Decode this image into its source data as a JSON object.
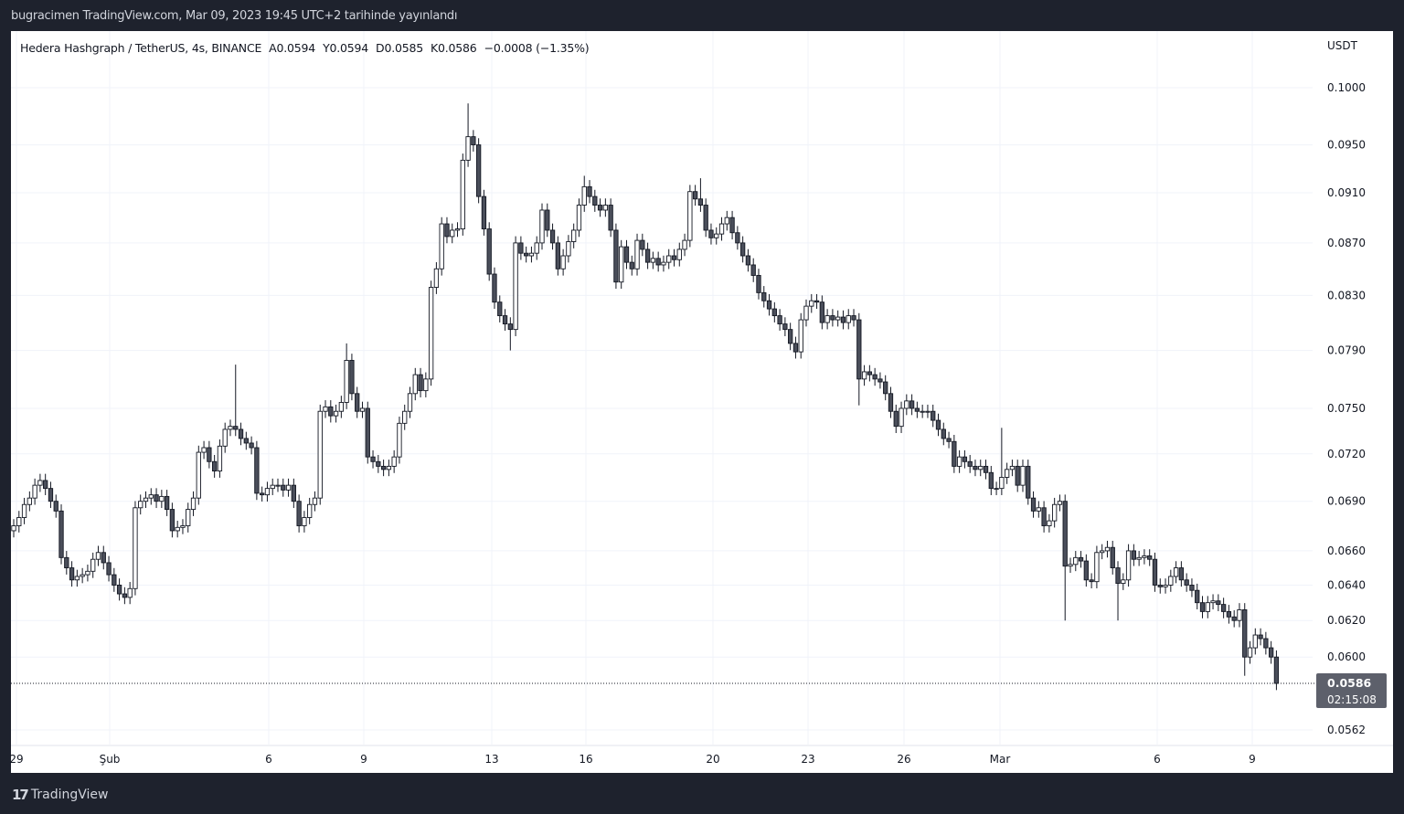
{
  "publication": "bugracimen TradingView.com, Mar 09, 2023 19:45 UTC+2 tarihinde yayınlandı",
  "legend": {
    "symbol": "Hedera Hashgraph / TetherUS, 4s, BINANCE",
    "open": "A0.0594",
    "high": "Y0.0594",
    "low": "D0.0585",
    "close": "K0.0586",
    "change": "−0.0008 (−1.35%)"
  },
  "footer": {
    "brand": "TradingView"
  },
  "colors": {
    "up_body": "#ffffff",
    "down_body": "#4a4e5a",
    "border": "#131722",
    "price_label_bg": "#5d606b",
    "grid": "#f0f3fa"
  },
  "chart_data": {
    "type": "candlestick",
    "title": "",
    "y_scale": "log",
    "currency_label": "USDT",
    "y_ticks": [
      "0.1000",
      "0.0950",
      "0.0910",
      "0.0870",
      "0.0830",
      "0.0790",
      "0.0750",
      "0.0720",
      "0.0690",
      "0.0660",
      "0.0640",
      "0.0620",
      "0.0600",
      "0.0562"
    ],
    "x_ticks": [
      "29",
      "Şub",
      "6",
      "9",
      "13",
      "16",
      "20",
      "23",
      "26",
      "Mar",
      "6",
      "9"
    ],
    "grid": true,
    "last_price": "0.0586",
    "countdown": "02:15:08",
    "first_open": 0.0672,
    "close": [
      0.0675,
      0.068,
      0.0688,
      0.0692,
      0.07,
      0.0703,
      0.0698,
      0.069,
      0.0684,
      0.0656,
      0.065,
      0.0643,
      0.0645,
      0.0646,
      0.0648,
      0.0655,
      0.0659,
      0.0653,
      0.0646,
      0.064,
      0.0635,
      0.0633,
      0.0638,
      0.0686,
      0.069,
      0.0692,
      0.0694,
      0.069,
      0.0693,
      0.0685,
      0.0672,
      0.0674,
      0.0675,
      0.0685,
      0.0692,
      0.0721,
      0.0724,
      0.0715,
      0.0709,
      0.0725,
      0.0736,
      0.0738,
      0.0736,
      0.073,
      0.0727,
      0.0724,
      0.0695,
      0.0694,
      0.0698,
      0.07,
      0.07,
      0.0697,
      0.07,
      0.069,
      0.0675,
      0.068,
      0.0688,
      0.0692,
      0.0748,
      0.0751,
      0.0745,
      0.0748,
      0.0754,
      0.0783,
      0.076,
      0.0748,
      0.075,
      0.0718,
      0.0715,
      0.0712,
      0.071,
      0.0712,
      0.0718,
      0.074,
      0.0748,
      0.076,
      0.0773,
      0.0762,
      0.077,
      0.0836,
      0.085,
      0.0885,
      0.0875,
      0.088,
      0.0881,
      0.0937,
      0.0957,
      0.095,
      0.0907,
      0.0881,
      0.0846,
      0.0825,
      0.0815,
      0.0809,
      0.0805,
      0.087,
      0.0862,
      0.086,
      0.0862,
      0.087,
      0.0896,
      0.088,
      0.087,
      0.085,
      0.086,
      0.0871,
      0.088,
      0.09,
      0.0915,
      0.0907,
      0.09,
      0.0896,
      0.09,
      0.088,
      0.084,
      0.0867,
      0.0855,
      0.085,
      0.0872,
      0.0865,
      0.0855,
      0.0858,
      0.0853,
      0.0855,
      0.086,
      0.0857,
      0.0865,
      0.0872,
      0.0911,
      0.0905,
      0.09,
      0.088,
      0.0874,
      0.0877,
      0.0885,
      0.089,
      0.0878,
      0.087,
      0.086,
      0.0853,
      0.0845,
      0.0832,
      0.0826,
      0.082,
      0.0815,
      0.0809,
      0.0805,
      0.0795,
      0.0789,
      0.0812,
      0.0822,
      0.0826,
      0.0825,
      0.081,
      0.0815,
      0.0812,
      0.0814,
      0.081,
      0.0815,
      0.0812,
      0.077,
      0.0775,
      0.0773,
      0.077,
      0.0768,
      0.076,
      0.0748,
      0.0738,
      0.075,
      0.0755,
      0.075,
      0.0748,
      0.0748,
      0.0748,
      0.0742,
      0.0736,
      0.073,
      0.0728,
      0.0712,
      0.0718,
      0.0715,
      0.0712,
      0.071,
      0.0712,
      0.0708,
      0.0698,
      0.0698,
      0.0705,
      0.071,
      0.0712,
      0.07,
      0.0712,
      0.0692,
      0.0684,
      0.0686,
      0.0675,
      0.0678,
      0.0688,
      0.069,
      0.0651,
      0.0652,
      0.0656,
      0.0654,
      0.0643,
      0.0642,
      0.0659,
      0.066,
      0.0662,
      0.065,
      0.0641,
      0.0643,
      0.066,
      0.0655,
      0.0656,
      0.0657,
      0.0655,
      0.064,
      0.0639,
      0.064,
      0.0645,
      0.065,
      0.0643,
      0.064,
      0.0637,
      0.063,
      0.0625,
      0.063,
      0.0631,
      0.0629,
      0.0625,
      0.0622,
      0.062,
      0.0626,
      0.06,
      0.0605,
      0.0612,
      0.061,
      0.0605,
      0.06,
      0.0586
    ],
    "notable_wicks": [
      {
        "index": 63,
        "high": 0.0795
      },
      {
        "index": 42,
        "high": 0.078
      },
      {
        "index": 86,
        "high": 0.0986
      },
      {
        "index": 94,
        "low": 0.079
      },
      {
        "index": 108,
        "high": 0.0924
      },
      {
        "index": 130,
        "high": 0.0922
      },
      {
        "index": 160,
        "low": 0.0752
      },
      {
        "index": 187,
        "high": 0.0737
      },
      {
        "index": 199,
        "low": 0.062
      },
      {
        "index": 209,
        "low": 0.062
      },
      {
        "index": 233,
        "low": 0.059
      }
    ]
  }
}
